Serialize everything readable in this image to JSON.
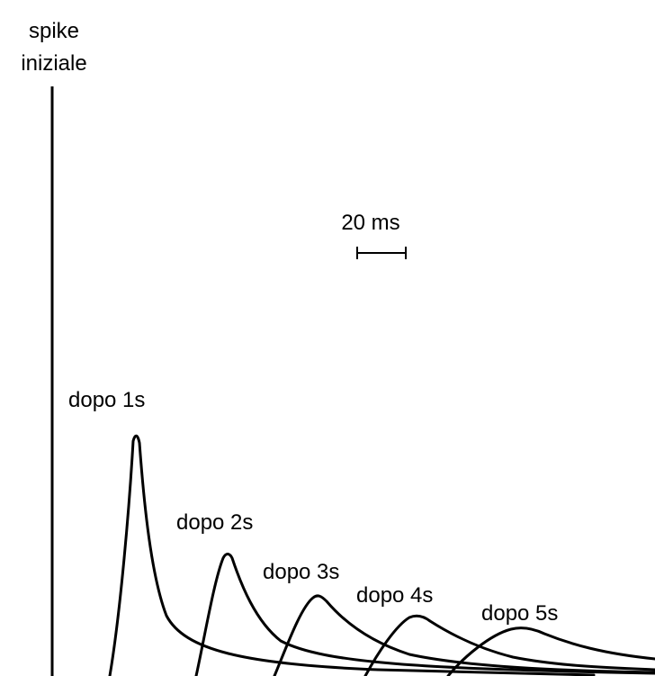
{
  "initial_spike": {
    "label_line1": "spike",
    "label_line2": "iniziale"
  },
  "scale_bar": {
    "label": "20 ms"
  },
  "traces": [
    {
      "label": "dopo 1s"
    },
    {
      "label": "dopo 2s"
    },
    {
      "label": "dopo 3s"
    },
    {
      "label": "dopo 4s"
    },
    {
      "label": "dopo 5s"
    }
  ]
}
